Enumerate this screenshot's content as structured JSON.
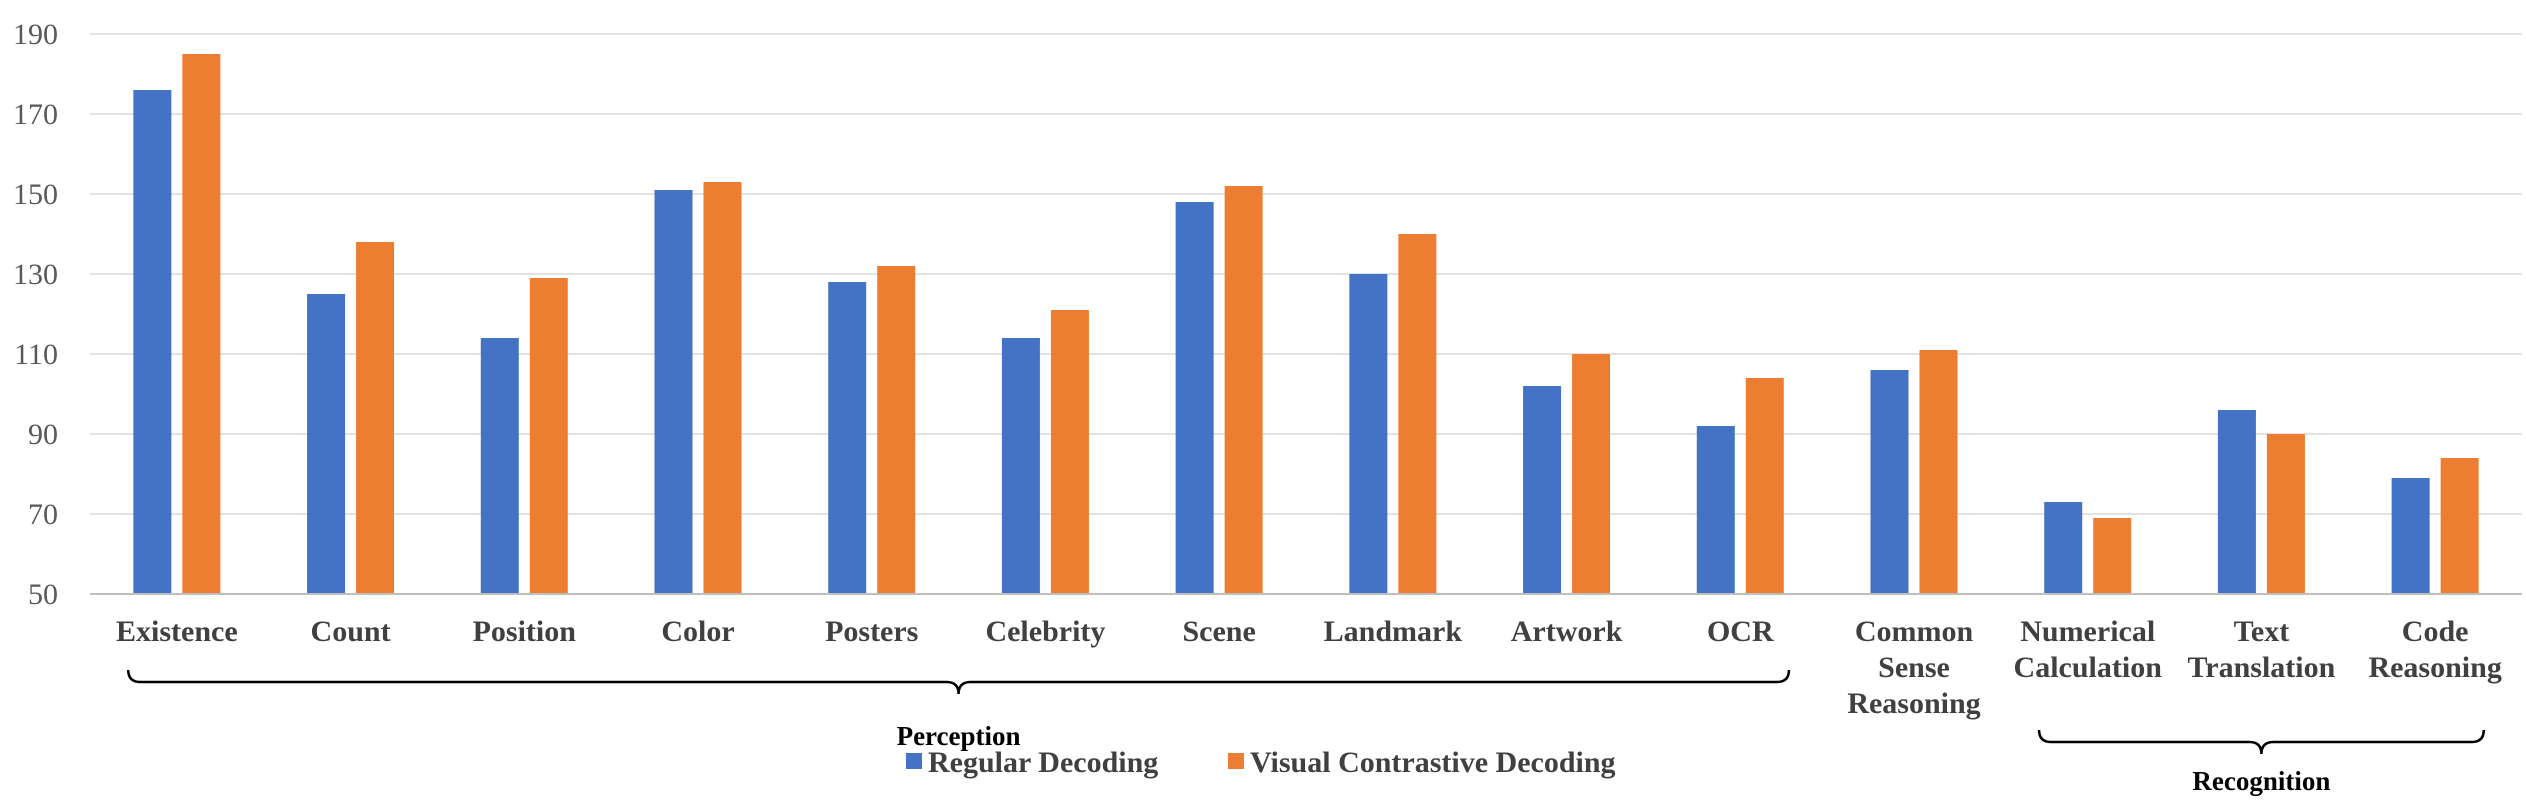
{
  "chart_data": {
    "type": "bar",
    "title": "",
    "xlabel": "",
    "ylabel": "",
    "ylim": [
      50,
      190
    ],
    "yticks": [
      50,
      70,
      90,
      110,
      130,
      150,
      170,
      190
    ],
    "grid": true,
    "categories": [
      [
        "Existence"
      ],
      [
        "Count"
      ],
      [
        "Position"
      ],
      [
        "Color"
      ],
      [
        "Posters"
      ],
      [
        "Celebrity"
      ],
      [
        "Scene"
      ],
      [
        "Landmark"
      ],
      [
        "Artwork"
      ],
      [
        "OCR"
      ],
      [
        "Common",
        "Sense",
        "Reasoning"
      ],
      [
        "Numerical",
        "Calculation"
      ],
      [
        "Text",
        "Translation"
      ],
      [
        "Code",
        "Reasoning"
      ]
    ],
    "series": [
      {
        "name": "Regular Decoding",
        "color": "#4472C4",
        "values": [
          176,
          125,
          114,
          151,
          128,
          114,
          148,
          130,
          102,
          92,
          106,
          73,
          96,
          79
        ]
      },
      {
        "name": "Visual Contrastive Decoding",
        "color": "#ED7D31",
        "values": [
          185,
          138,
          129,
          153,
          132,
          121,
          152,
          140,
          110,
          104,
          111,
          69,
          90,
          84
        ]
      }
    ],
    "groups": [
      {
        "label": "Perception",
        "from": 0,
        "to": 9
      },
      {
        "label": "Recognition",
        "from": 11,
        "to": 13
      }
    ],
    "legend": {
      "position": "bottom-center"
    }
  }
}
